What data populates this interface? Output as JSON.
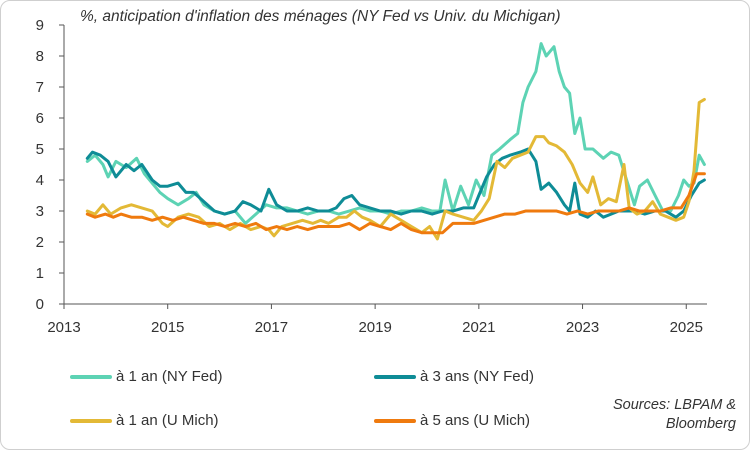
{
  "chart_data": {
    "type": "line",
    "title": "%, anticipation d'inflation des ménages (NY Fed vs Univ. du Michigan)",
    "xlabel": "",
    "ylabel": "",
    "xlim": [
      2013,
      2025.4
    ],
    "ylim": [
      0,
      9
    ],
    "x_ticks": [
      "2013",
      "2015",
      "2017",
      "2019",
      "2021",
      "2023",
      "2025"
    ],
    "y_ticks": [
      "0",
      "1",
      "2",
      "3",
      "4",
      "5",
      "6",
      "7",
      "8",
      "9"
    ],
    "grid": false,
    "legend_position": "bottom",
    "series": [
      {
        "name": "à 1 an (NY Fed)",
        "color": "#5DD3B4",
        "points": [
          [
            2013.45,
            4.6
          ],
          [
            2013.6,
            4.8
          ],
          [
            2013.75,
            4.5
          ],
          [
            2013.85,
            4.1
          ],
          [
            2014.0,
            4.6
          ],
          [
            2014.2,
            4.4
          ],
          [
            2014.4,
            4.7
          ],
          [
            2014.55,
            4.2
          ],
          [
            2014.7,
            3.9
          ],
          [
            2014.85,
            3.6
          ],
          [
            2015.0,
            3.4
          ],
          [
            2015.2,
            3.2
          ],
          [
            2015.4,
            3.4
          ],
          [
            2015.55,
            3.6
          ],
          [
            2015.7,
            3.2
          ],
          [
            2015.9,
            3.0
          ],
          [
            2016.1,
            2.9
          ],
          [
            2016.3,
            3.0
          ],
          [
            2016.5,
            2.6
          ],
          [
            2016.7,
            2.9
          ],
          [
            2016.9,
            3.2
          ],
          [
            2017.1,
            3.1
          ],
          [
            2017.3,
            3.1
          ],
          [
            2017.5,
            3.0
          ],
          [
            2017.7,
            2.9
          ],
          [
            2017.9,
            3.0
          ],
          [
            2018.1,
            3.0
          ],
          [
            2018.3,
            2.9
          ],
          [
            2018.5,
            3.0
          ],
          [
            2018.7,
            3.1
          ],
          [
            2018.9,
            3.0
          ],
          [
            2019.1,
            3.0
          ],
          [
            2019.3,
            2.9
          ],
          [
            2019.5,
            3.0
          ],
          [
            2019.7,
            3.0
          ],
          [
            2019.9,
            3.1
          ],
          [
            2020.1,
            3.0
          ],
          [
            2020.25,
            3.0
          ],
          [
            2020.35,
            4.0
          ],
          [
            2020.5,
            3.0
          ],
          [
            2020.65,
            3.8
          ],
          [
            2020.8,
            3.2
          ],
          [
            2020.95,
            4.0
          ],
          [
            2021.1,
            3.5
          ],
          [
            2021.25,
            4.8
          ],
          [
            2021.4,
            5.0
          ],
          [
            2021.6,
            5.3
          ],
          [
            2021.75,
            5.5
          ],
          [
            2021.85,
            6.5
          ],
          [
            2021.95,
            7.0
          ],
          [
            2022.1,
            7.5
          ],
          [
            2022.2,
            8.4
          ],
          [
            2022.3,
            8.0
          ],
          [
            2022.45,
            8.3
          ],
          [
            2022.55,
            7.5
          ],
          [
            2022.65,
            7.0
          ],
          [
            2022.75,
            6.8
          ],
          [
            2022.85,
            5.5
          ],
          [
            2022.95,
            6.0
          ],
          [
            2023.05,
            5.0
          ],
          [
            2023.2,
            5.0
          ],
          [
            2023.4,
            4.7
          ],
          [
            2023.55,
            4.9
          ],
          [
            2023.7,
            4.8
          ],
          [
            2023.85,
            4.0
          ],
          [
            2024.0,
            3.2
          ],
          [
            2024.1,
            3.8
          ],
          [
            2024.25,
            4.0
          ],
          [
            2024.4,
            3.5
          ],
          [
            2024.55,
            3.0
          ],
          [
            2024.7,
            3.0
          ],
          [
            2024.85,
            3.5
          ],
          [
            2024.95,
            4.0
          ],
          [
            2025.05,
            3.8
          ],
          [
            2025.15,
            3.9
          ],
          [
            2025.25,
            4.8
          ],
          [
            2025.35,
            4.5
          ]
        ]
      },
      {
        "name": "à 3 ans (NY Fed)",
        "color": "#0E8C96",
        "points": [
          [
            2013.45,
            4.7
          ],
          [
            2013.55,
            4.9
          ],
          [
            2013.7,
            4.8
          ],
          [
            2013.85,
            4.6
          ],
          [
            2014.0,
            4.1
          ],
          [
            2014.2,
            4.5
          ],
          [
            2014.35,
            4.3
          ],
          [
            2014.5,
            4.5
          ],
          [
            2014.7,
            4.0
          ],
          [
            2014.85,
            3.8
          ],
          [
            2015.0,
            3.8
          ],
          [
            2015.2,
            3.9
          ],
          [
            2015.35,
            3.6
          ],
          [
            2015.5,
            3.6
          ],
          [
            2015.7,
            3.3
          ],
          [
            2015.9,
            3.0
          ],
          [
            2016.1,
            2.9
          ],
          [
            2016.3,
            3.0
          ],
          [
            2016.45,
            3.3
          ],
          [
            2016.6,
            3.2
          ],
          [
            2016.8,
            3.0
          ],
          [
            2016.95,
            3.7
          ],
          [
            2017.1,
            3.2
          ],
          [
            2017.3,
            3.0
          ],
          [
            2017.5,
            3.0
          ],
          [
            2017.7,
            3.1
          ],
          [
            2017.9,
            3.0
          ],
          [
            2018.1,
            3.0
          ],
          [
            2018.25,
            3.1
          ],
          [
            2018.4,
            3.4
          ],
          [
            2018.55,
            3.5
          ],
          [
            2018.7,
            3.2
          ],
          [
            2018.9,
            3.1
          ],
          [
            2019.1,
            3.0
          ],
          [
            2019.3,
            3.0
          ],
          [
            2019.5,
            2.9
          ],
          [
            2019.7,
            3.0
          ],
          [
            2019.9,
            3.0
          ],
          [
            2020.1,
            2.9
          ],
          [
            2020.3,
            3.0
          ],
          [
            2020.5,
            3.0
          ],
          [
            2020.7,
            3.1
          ],
          [
            2020.9,
            3.1
          ],
          [
            2021.0,
            3.5
          ],
          [
            2021.15,
            4.1
          ],
          [
            2021.3,
            4.5
          ],
          [
            2021.45,
            4.7
          ],
          [
            2021.6,
            4.8
          ],
          [
            2021.8,
            4.9
          ],
          [
            2021.95,
            5.0
          ],
          [
            2022.1,
            4.6
          ],
          [
            2022.2,
            3.7
          ],
          [
            2022.35,
            3.9
          ],
          [
            2022.5,
            3.6
          ],
          [
            2022.65,
            3.2
          ],
          [
            2022.75,
            3.0
          ],
          [
            2022.85,
            3.9
          ],
          [
            2022.95,
            2.9
          ],
          [
            2023.1,
            2.8
          ],
          [
            2023.25,
            3.0
          ],
          [
            2023.4,
            2.8
          ],
          [
            2023.55,
            2.9
          ],
          [
            2023.7,
            3.0
          ],
          [
            2023.85,
            3.0
          ],
          [
            2024.0,
            3.0
          ],
          [
            2024.2,
            2.9
          ],
          [
            2024.4,
            3.0
          ],
          [
            2024.6,
            3.0
          ],
          [
            2024.8,
            2.8
          ],
          [
            2024.95,
            3.0
          ],
          [
            2025.1,
            3.5
          ],
          [
            2025.25,
            3.9
          ],
          [
            2025.35,
            4.0
          ]
        ]
      },
      {
        "name": "à 1 an (U Mich)",
        "color": "#E3B936",
        "points": [
          [
            2013.45,
            3.0
          ],
          [
            2013.6,
            2.9
          ],
          [
            2013.75,
            3.2
          ],
          [
            2013.9,
            2.9
          ],
          [
            2014.1,
            3.1
          ],
          [
            2014.3,
            3.2
          ],
          [
            2014.5,
            3.1
          ],
          [
            2014.7,
            3.0
          ],
          [
            2014.9,
            2.6
          ],
          [
            2015.0,
            2.5
          ],
          [
            2015.2,
            2.8
          ],
          [
            2015.4,
            2.9
          ],
          [
            2015.6,
            2.8
          ],
          [
            2015.8,
            2.5
          ],
          [
            2016.0,
            2.6
          ],
          [
            2016.2,
            2.4
          ],
          [
            2016.4,
            2.6
          ],
          [
            2016.6,
            2.4
          ],
          [
            2016.8,
            2.5
          ],
          [
            2016.95,
            2.4
          ],
          [
            2017.05,
            2.2
          ],
          [
            2017.2,
            2.5
          ],
          [
            2017.4,
            2.6
          ],
          [
            2017.6,
            2.7
          ],
          [
            2017.8,
            2.6
          ],
          [
            2017.95,
            2.7
          ],
          [
            2018.1,
            2.6
          ],
          [
            2018.3,
            2.8
          ],
          [
            2018.45,
            2.8
          ],
          [
            2018.6,
            3.0
          ],
          [
            2018.75,
            2.8
          ],
          [
            2018.9,
            2.7
          ],
          [
            2019.1,
            2.5
          ],
          [
            2019.3,
            2.9
          ],
          [
            2019.5,
            2.7
          ],
          [
            2019.7,
            2.5
          ],
          [
            2019.9,
            2.3
          ],
          [
            2020.05,
            2.5
          ],
          [
            2020.2,
            2.1
          ],
          [
            2020.35,
            3.0
          ],
          [
            2020.5,
            2.9
          ],
          [
            2020.7,
            2.8
          ],
          [
            2020.9,
            2.7
          ],
          [
            2021.05,
            3.0
          ],
          [
            2021.2,
            3.4
          ],
          [
            2021.35,
            4.6
          ],
          [
            2021.5,
            4.4
          ],
          [
            2021.65,
            4.7
          ],
          [
            2021.8,
            4.8
          ],
          [
            2021.95,
            4.9
          ],
          [
            2022.1,
            5.4
          ],
          [
            2022.25,
            5.4
          ],
          [
            2022.35,
            5.2
          ],
          [
            2022.5,
            5.1
          ],
          [
            2022.65,
            4.9
          ],
          [
            2022.8,
            4.5
          ],
          [
            2022.95,
            3.9
          ],
          [
            2023.1,
            3.6
          ],
          [
            2023.2,
            4.1
          ],
          [
            2023.35,
            3.2
          ],
          [
            2023.5,
            3.4
          ],
          [
            2023.65,
            3.3
          ],
          [
            2023.8,
            4.5
          ],
          [
            2023.9,
            3.1
          ],
          [
            2024.05,
            2.9
          ],
          [
            2024.2,
            3.0
          ],
          [
            2024.35,
            3.3
          ],
          [
            2024.5,
            2.9
          ],
          [
            2024.65,
            2.8
          ],
          [
            2024.8,
            2.7
          ],
          [
            2024.95,
            2.8
          ],
          [
            2025.05,
            3.3
          ],
          [
            2025.15,
            4.3
          ],
          [
            2025.25,
            6.5
          ],
          [
            2025.35,
            6.6
          ]
        ]
      },
      {
        "name": "à 5 ans (U Mich)",
        "color": "#EF7A0E",
        "points": [
          [
            2013.45,
            2.9
          ],
          [
            2013.6,
            2.8
          ],
          [
            2013.8,
            2.9
          ],
          [
            2013.95,
            2.8
          ],
          [
            2014.1,
            2.9
          ],
          [
            2014.3,
            2.8
          ],
          [
            2014.5,
            2.8
          ],
          [
            2014.7,
            2.7
          ],
          [
            2014.9,
            2.8
          ],
          [
            2015.1,
            2.7
          ],
          [
            2015.3,
            2.8
          ],
          [
            2015.5,
            2.7
          ],
          [
            2015.7,
            2.6
          ],
          [
            2015.9,
            2.6
          ],
          [
            2016.1,
            2.5
          ],
          [
            2016.3,
            2.6
          ],
          [
            2016.5,
            2.5
          ],
          [
            2016.7,
            2.6
          ],
          [
            2016.9,
            2.4
          ],
          [
            2017.1,
            2.5
          ],
          [
            2017.3,
            2.4
          ],
          [
            2017.5,
            2.5
          ],
          [
            2017.7,
            2.4
          ],
          [
            2017.9,
            2.5
          ],
          [
            2018.1,
            2.5
          ],
          [
            2018.3,
            2.5
          ],
          [
            2018.5,
            2.6
          ],
          [
            2018.7,
            2.4
          ],
          [
            2018.9,
            2.6
          ],
          [
            2019.1,
            2.5
          ],
          [
            2019.3,
            2.4
          ],
          [
            2019.5,
            2.6
          ],
          [
            2019.7,
            2.4
          ],
          [
            2019.9,
            2.3
          ],
          [
            2020.1,
            2.3
          ],
          [
            2020.3,
            2.3
          ],
          [
            2020.5,
            2.6
          ],
          [
            2020.7,
            2.6
          ],
          [
            2020.9,
            2.6
          ],
          [
            2021.1,
            2.7
          ],
          [
            2021.3,
            2.8
          ],
          [
            2021.5,
            2.9
          ],
          [
            2021.7,
            2.9
          ],
          [
            2021.9,
            3.0
          ],
          [
            2022.1,
            3.0
          ],
          [
            2022.3,
            3.0
          ],
          [
            2022.5,
            3.0
          ],
          [
            2022.7,
            2.9
          ],
          [
            2022.9,
            3.0
          ],
          [
            2023.1,
            2.9
          ],
          [
            2023.3,
            3.0
          ],
          [
            2023.5,
            3.0
          ],
          [
            2023.7,
            3.0
          ],
          [
            2023.9,
            3.1
          ],
          [
            2024.1,
            3.0
          ],
          [
            2024.3,
            3.0
          ],
          [
            2024.5,
            3.0
          ],
          [
            2024.7,
            3.1
          ],
          [
            2024.9,
            3.1
          ],
          [
            2025.05,
            3.5
          ],
          [
            2025.2,
            4.2
          ],
          [
            2025.35,
            4.2
          ]
        ]
      }
    ]
  },
  "source": "Sources: LBPAM & Bloomberg"
}
